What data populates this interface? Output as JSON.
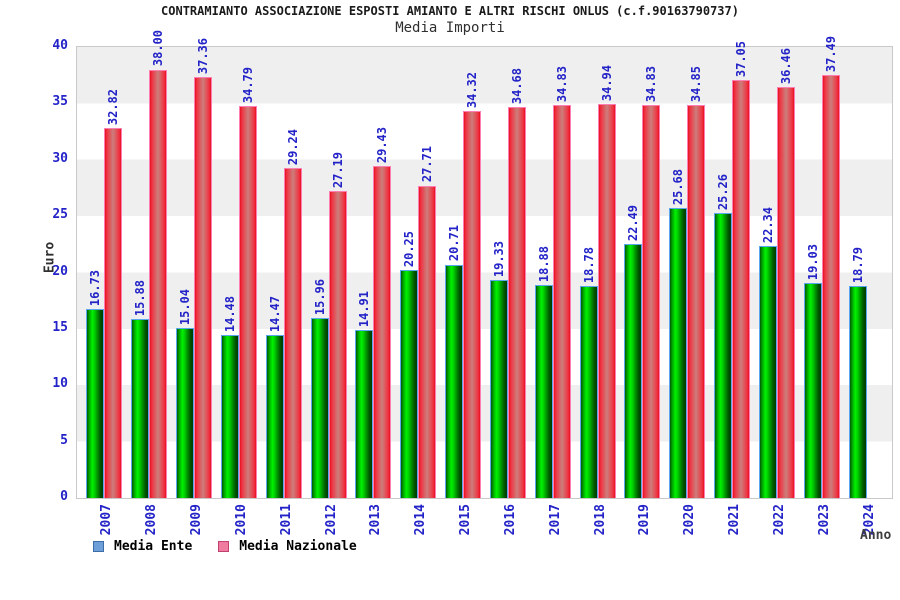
{
  "header": {
    "title": "CONTRAMIANTO ASSOCIAZIONE ESPOSTI AMIANTO E ALTRI RISCHI ONLUS (c.f.90163790737)",
    "subtitle": "Media Importi"
  },
  "axes": {
    "y_label": "Euro",
    "x_label": "Anno",
    "y_ticks": [
      0,
      5,
      10,
      15,
      20,
      25,
      30,
      35,
      40
    ]
  },
  "legend": {
    "items": [
      {
        "label": "Media Ente",
        "swatch_fill": "#6f9fd8",
        "swatch_border": "#3a6ea5"
      },
      {
        "label": "Media Nazionale",
        "swatch_fill": "#ef7b9f",
        "swatch_border": "#c04070"
      }
    ]
  },
  "colors": {
    "label_blue": "#2323c8",
    "bar_green": "#00cc00",
    "bar_red": "#e8101f",
    "band_gray": "#efefef",
    "plot_border": "#c9c9c9"
  },
  "chart_data": {
    "type": "bar",
    "title": "CONTRAMIANTO ASSOCIAZIONE ESPOSTI AMIANTO E ALTRI RISCHI ONLUS (c.f.90163790737)",
    "subtitle": "Media Importi",
    "xlabel": "Anno",
    "ylabel": "Euro",
    "ylim": [
      0,
      40
    ],
    "grid": "horizontal-bands",
    "legend_position": "bottom-left",
    "categories": [
      "2007",
      "2008",
      "2009",
      "2010",
      "2011",
      "2012",
      "2013",
      "2014",
      "2015",
      "2016",
      "2017",
      "2018",
      "2019",
      "2020",
      "2021",
      "2022",
      "2023",
      "2024"
    ],
    "series": [
      {
        "name": "Media Ente",
        "color": "green",
        "values": [
          16.73,
          15.88,
          15.04,
          14.48,
          14.47,
          15.96,
          14.91,
          20.25,
          20.71,
          19.33,
          18.88,
          18.78,
          22.49,
          25.68,
          25.26,
          22.34,
          19.03,
          18.79
        ]
      },
      {
        "name": "Media Nazionale",
        "color": "red",
        "values": [
          32.82,
          38.0,
          37.36,
          34.79,
          29.24,
          27.19,
          29.43,
          27.71,
          34.32,
          34.68,
          34.83,
          34.94,
          34.83,
          34.85,
          37.05,
          36.46,
          37.49,
          null
        ]
      }
    ]
  }
}
